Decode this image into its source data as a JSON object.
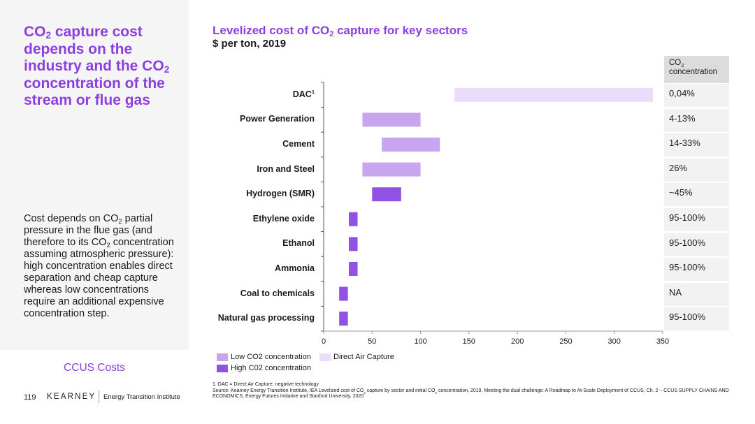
{
  "left": {
    "title_html": "CO<sub>2</sub> capture cost depends on the industry and the CO<sub>2</sub> concentration of the stream or flue gas",
    "body_html": "Cost depends on CO<sub>2</sub> partial pressure in the flue gas (and therefore to its CO<sub>2</sub> concentration assuming atmospheric pressure): high concentration enables direct separation and cheap capture whereas low concentrations require an additional expensive concentration step.",
    "section_label": "CCUS Costs",
    "page_number": "119",
    "brand": "KEARNEY",
    "brand_sub": "Energy Transition Institute"
  },
  "chart_header": {
    "title_html": "Levelized cost of CO<sub>2</sub> capture for key sectors",
    "subtitle": "$ per ton, 2019"
  },
  "concentration_table": {
    "header_html": "CO<sub>2</sub><br>concentration",
    "values": [
      "0,04%",
      "4-13%",
      "14-33%",
      "26%",
      "~45%",
      "95-100%",
      "95-100%",
      "95-100%",
      "NA",
      "95-100%"
    ]
  },
  "chart_data": {
    "type": "bar",
    "orientation": "horizontal",
    "title": "Levelized cost of CO2 capture for key sectors",
    "subtitle": "$ per ton, 2019",
    "categories": [
      "DAC",
      "Power Generation",
      "Cement",
      "Iron and Steel",
      "Hydrogen (SMR)",
      "Ethylene oxide",
      "Ethanol",
      "Ammonia",
      "Coal to chemicals",
      "Natural gas processing"
    ],
    "category_labels_html": [
      "DAC<sup>1</sup>",
      "Power Generation",
      "Cement",
      "Iron and Steel",
      "Hydrogen (SMR)",
      "Ethylene oxide",
      "Ethanol",
      "Ammonia",
      "Coal to chemicals",
      "Natural gas processing"
    ],
    "ranges": [
      [
        135,
        340
      ],
      [
        40,
        100
      ],
      [
        60,
        120
      ],
      [
        40,
        100
      ],
      [
        50,
        80
      ],
      [
        26,
        35
      ],
      [
        26,
        35
      ],
      [
        26,
        35
      ],
      [
        16,
        25
      ],
      [
        16,
        25
      ]
    ],
    "range_kind": [
      "dac",
      "low",
      "low",
      "low",
      "high",
      "high",
      "high",
      "high",
      "high",
      "high"
    ],
    "xlim": [
      0,
      350
    ],
    "xticks": [
      0,
      50,
      100,
      150,
      200,
      250,
      300,
      350
    ],
    "legend": [
      {
        "key": "low",
        "label": "Low CO2 concentration",
        "color": "#c8a6ef"
      },
      {
        "key": "high",
        "label": "High C02 concentration",
        "color": "#9152e3"
      },
      {
        "key": "dac",
        "label": "Direct Air Capture",
        "color": "#ecdcfb"
      }
    ]
  },
  "footnote": {
    "line1": "1.      DAC = Direct Air Capture, negative technology",
    "line2_html": "Source: Kearney Energy Transition Institute, IEA Levelized cost of CO<sub>2</sub> capture by sector and initial CO<sub>2</sub> concentration, 2019, Meeting the dual challenge: A Roadmap to At-Scale Deployment of CCUS, Ch. 2 – CCUS SUPPLY CHAINS AND ECONOMICS, Energy Futures Initiative and Stanford University, 2020"
  }
}
